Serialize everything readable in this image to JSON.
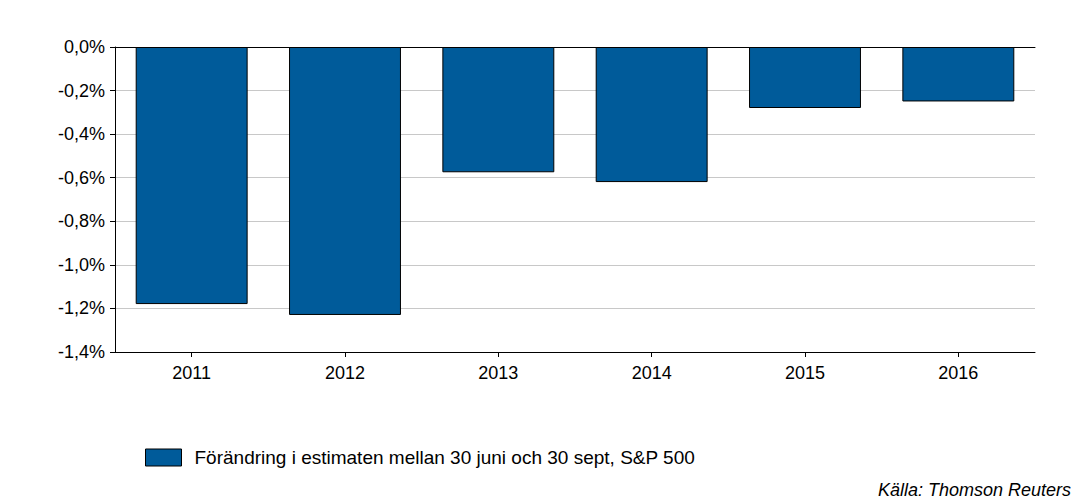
{
  "chart_data": {
    "type": "bar",
    "categories": [
      "2011",
      "2012",
      "2013",
      "2014",
      "2015",
      "2016"
    ],
    "series": [
      {
        "name": "Förändring i estimaten mellan 30 juni och 30 sept, S&P 500",
        "color": "#005b9a",
        "values": [
          -1.18,
          -1.23,
          -0.575,
          -0.62,
          -0.28,
          -0.25
        ]
      }
    ],
    "ylim": [
      -1.4,
      0
    ],
    "yticks": [
      {
        "value": -1.4,
        "label": "-1,4%"
      },
      {
        "value": -1.2,
        "label": "-1,2%"
      },
      {
        "value": -1.0,
        "label": "-1,0%"
      },
      {
        "value": -0.8,
        "label": "-0,8%"
      },
      {
        "value": -0.6,
        "label": "-0,6%"
      },
      {
        "value": -0.4,
        "label": "-0,4%"
      },
      {
        "value": -0.2,
        "label": "-0,2%"
      },
      {
        "value": 0,
        "label": "0,0%"
      }
    ],
    "grid": true,
    "legend": "bottom",
    "source": "Källa: Thomson Reuters"
  }
}
